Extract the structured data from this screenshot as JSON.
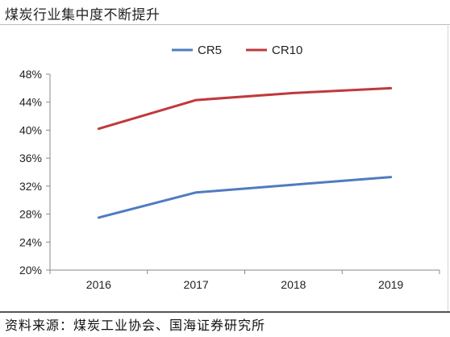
{
  "title": "煤炭行业集中度不断提升",
  "source": "资料来源：煤炭工业协会、国海证券研究所",
  "chart_data": {
    "type": "line",
    "title": "煤炭行业集中度不断提升",
    "x": [
      "2016",
      "2017",
      "2018",
      "2019"
    ],
    "series": [
      {
        "name": "CR5",
        "values": [
          27.5,
          31.1,
          32.2,
          33.3
        ],
        "color": "#4f7cc0"
      },
      {
        "name": "CR10",
        "values": [
          40.2,
          44.3,
          45.3,
          46.0
        ],
        "color": "#c0393b"
      }
    ],
    "ylim": [
      20,
      48
    ],
    "yticks": [
      20,
      24,
      28,
      32,
      36,
      40,
      44,
      48
    ],
    "ytick_labels": [
      "20%",
      "24%",
      "28%",
      "32%",
      "36%",
      "40%",
      "44%",
      "48%"
    ],
    "xlabel": "",
    "ylabel": "",
    "legend": "top-center",
    "grid": false
  }
}
